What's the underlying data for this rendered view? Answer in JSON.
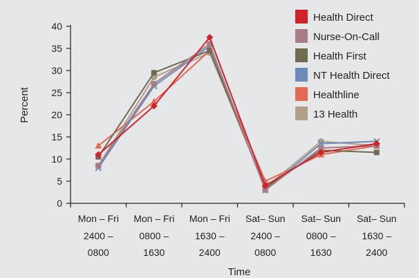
{
  "chart_data": {
    "type": "line",
    "title": "",
    "xlabel": "Time",
    "ylabel": "Percent",
    "ylim": [
      0,
      40
    ],
    "yticks": [
      0,
      5,
      10,
      15,
      20,
      25,
      30,
      35,
      40
    ],
    "grid": false,
    "legend_position": "top-right",
    "categories": [
      [
        "Mon – Fri",
        "2400 –",
        "0800"
      ],
      [
        "Mon – Fri",
        "0800 –",
        "1630"
      ],
      [
        "Mon – Fri",
        "1630 –",
        "2400"
      ],
      [
        "Sat– Sun",
        "2400 –",
        "0800"
      ],
      [
        "Sat– Sun",
        "0800 –",
        "1630"
      ],
      [
        "Sat– Sun",
        "1630 –",
        "2400"
      ]
    ],
    "series": [
      {
        "name": "Health Direct",
        "color": "#d2232a",
        "marker": "diamond",
        "values": [
          11,
          22,
          37.5,
          4,
          11.5,
          13.5
        ]
      },
      {
        "name": "Nurse-On-Call",
        "color": "#a67c86",
        "marker": "square",
        "values": [
          8.5,
          27,
          36,
          3,
          12.5,
          13
        ]
      },
      {
        "name": "Health First",
        "color": "#6f6c52",
        "marker": "square",
        "values": [
          10.5,
          29.5,
          34.5,
          3.5,
          12,
          11.5
        ]
      },
      {
        "name": "NT Health Direct",
        "color": "#6c8cb8",
        "marker": "x",
        "values": [
          8,
          26.5,
          35.5,
          3,
          13.5,
          14
        ]
      },
      {
        "name": "Healthline",
        "color": "#e26a55",
        "marker": "triangle",
        "values": [
          13,
          23,
          34.5,
          5,
          11,
          13
        ]
      },
      {
        "name": "13 Health",
        "color": "#b29f8b",
        "marker": "circle",
        "values": [
          8.5,
          28.5,
          34,
          3.5,
          14,
          13
        ]
      }
    ]
  }
}
